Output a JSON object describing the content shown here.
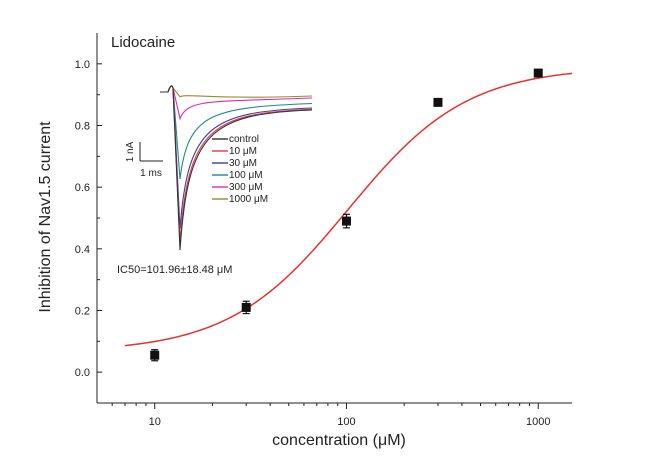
{
  "chart_data": {
    "type": "scatter",
    "title": "Lidocaine",
    "xlabel": "concentration (μM)",
    "ylabel": "Inhibition of Nav1.5 current",
    "xscale": "log",
    "xlim": [
      5,
      1500
    ],
    "ylim": [
      -0.1,
      1.1
    ],
    "xticks": [
      10,
      100,
      1000
    ],
    "xtick_labels": [
      "10",
      "100",
      "1000"
    ],
    "yticks": [
      0.0,
      0.2,
      0.4,
      0.6,
      0.8,
      1.0
    ],
    "ytick_labels": [
      "0.0",
      "0.2",
      "0.4",
      "0.6",
      "0.8",
      "1.0"
    ],
    "grid": false,
    "points": {
      "x": [
        10,
        30,
        100,
        300,
        1000
      ],
      "y": [
        0.055,
        0.21,
        0.49,
        0.875,
        0.97
      ],
      "yerr": [
        0.018,
        0.02,
        0.022,
        0.008,
        0.01
      ],
      "color": "#111111"
    },
    "fit": {
      "type": "hill",
      "bottom": 0.065,
      "top": 0.99,
      "ic50": 101.96,
      "hill": 1.4,
      "color": "#e8312f"
    },
    "annotation": "IC50=101.96±18.48 μM",
    "inset": {
      "scale_bar_y": "1 nA",
      "scale_bar_x": "1 ms",
      "legend": [
        {
          "label": "control",
          "color": "#333333",
          "peak": 0.42
        },
        {
          "label": "10 μM",
          "color": "#e23b3b",
          "peak": 0.45
        },
        {
          "label": "30 μM",
          "color": "#3a3ab0",
          "peak": 0.5
        },
        {
          "label": "100 μM",
          "color": "#1f8a8a",
          "peak": 0.68
        },
        {
          "label": "300 μM",
          "color": "#e02ab0",
          "peak": 0.9
        },
        {
          "label": "1000 μM",
          "color": "#9a8a2a",
          "peak": 0.98
        }
      ]
    }
  }
}
